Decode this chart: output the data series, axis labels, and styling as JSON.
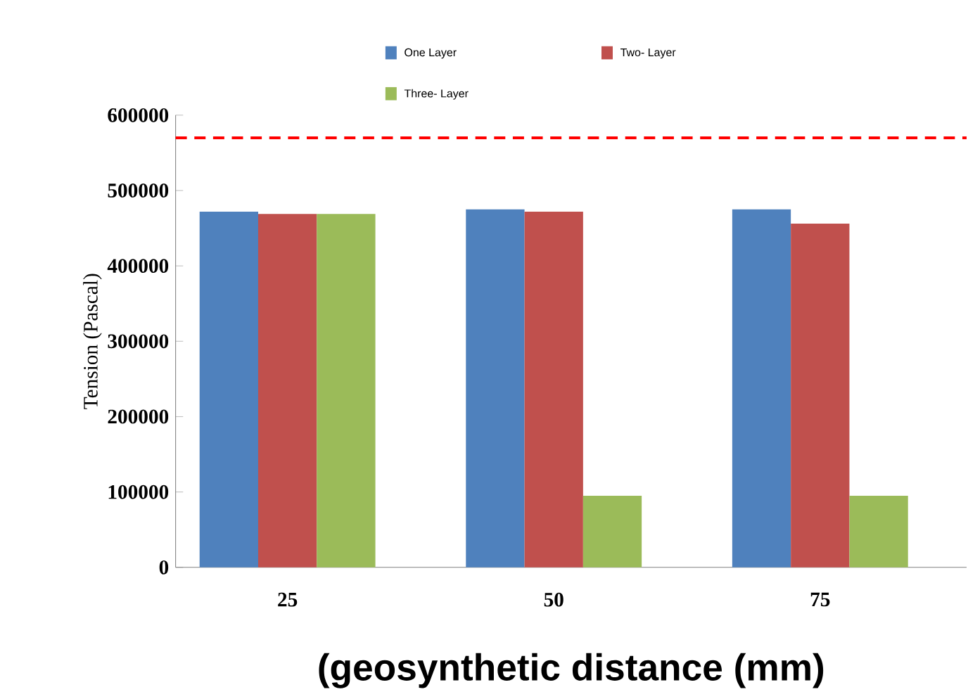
{
  "chart_data": {
    "type": "bar",
    "categories": [
      "25",
      "50",
      "75"
    ],
    "series": [
      {
        "name": "One Layer",
        "color": "#4f81bd",
        "values": [
          472000,
          475000,
          475000
        ]
      },
      {
        "name": "Two- Layer",
        "color": "#c0504d",
        "values": [
          469000,
          472000,
          456000
        ]
      },
      {
        "name": "Three- Layer",
        "color": "#9bbb59",
        "values": [
          469000,
          95000,
          95000
        ]
      }
    ],
    "ylim": [
      0,
      600000
    ],
    "yticks": [
      0,
      100000,
      200000,
      300000,
      400000,
      500000,
      600000
    ],
    "ylabel": "Tension (Pascal)",
    "xlabel": "(geosynthetic distance (mm)",
    "ref_lines": [
      {
        "axis": "y",
        "value": 570000,
        "color": "#ff0000",
        "line_style": "dashed"
      }
    ],
    "legend": "top"
  }
}
